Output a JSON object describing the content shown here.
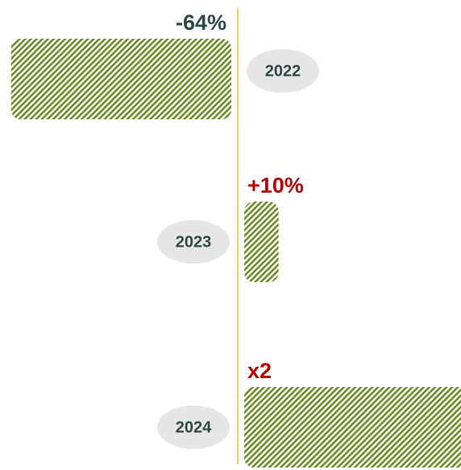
{
  "chart_data": {
    "type": "diverging-bar",
    "categories": [
      "2022",
      "2023",
      "2024"
    ],
    "values": [
      -64,
      10,
      100
    ],
    "value_labels": [
      "-64%",
      "+10%",
      "x2"
    ],
    "color": "#6b8e23",
    "positive_label_color": "#c00000",
    "negative_label_color": "#2d4a45"
  }
}
